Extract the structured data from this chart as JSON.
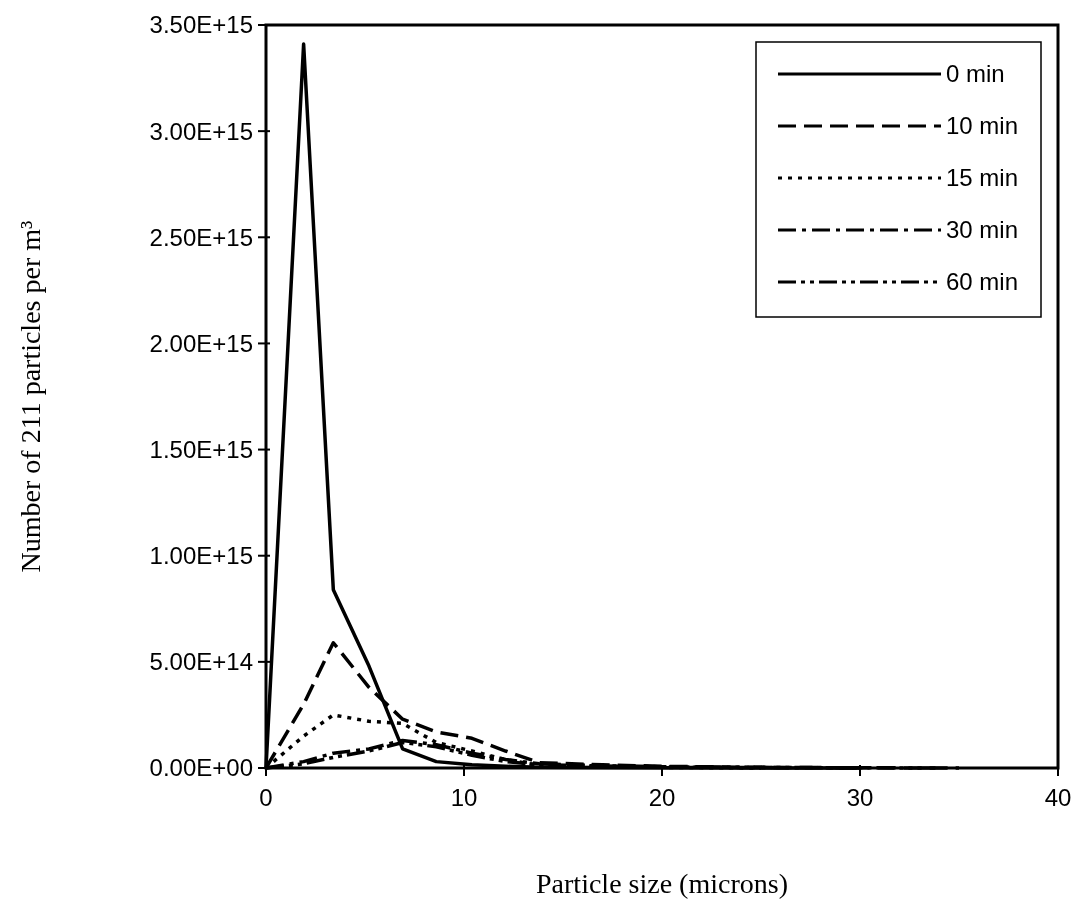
{
  "chart_data": {
    "type": "line",
    "xlabel": "Particle size (microns)",
    "ylabel": "Number of 211 particles per m³",
    "xlim": [
      0,
      40
    ],
    "xticks": [
      0,
      10,
      20,
      30,
      40
    ],
    "ylim": [
      0,
      3500000000000000.0
    ],
    "yticks": [
      {
        "value": 0,
        "label": "0.00E+00"
      },
      {
        "value": 500000000000000.0,
        "label": "5.00E+14"
      },
      {
        "value": 1000000000000000.0,
        "label": "1.00E+15"
      },
      {
        "value": 1500000000000000.0,
        "label": "1.50E+15"
      },
      {
        "value": 2000000000000000.0,
        "label": "2.00E+15"
      },
      {
        "value": 2500000000000000.0,
        "label": "2.50E+15"
      },
      {
        "value": 3000000000000000.0,
        "label": "3.00E+15"
      },
      {
        "value": 3500000000000000.0,
        "label": "3.50E+15"
      }
    ],
    "legend": "top right",
    "grid": false,
    "series": [
      {
        "name": "0 min",
        "color": "#000000",
        "line_style": "solid",
        "x": [
          0,
          1.9,
          3.4,
          5.2,
          6.9,
          8.6,
          10.4,
          12.1,
          13.8,
          17,
          20,
          25,
          30
        ],
        "values": [
          0,
          3410000000000000.0,
          840000000000000.0,
          480000000000000.0,
          90000000000000.0,
          30000000000000.0,
          15000000000000.0,
          8000000000000.0,
          4000000000000.0,
          2000000000000.0,
          1000000000000.0,
          0,
          0
        ]
      },
      {
        "name": "10 min",
        "color": "#000000",
        "line_style": "dashed",
        "x": [
          0,
          1.9,
          3.4,
          5.2,
          6.9,
          8.6,
          10.4,
          12.1,
          13.8,
          17,
          20,
          25,
          30,
          35
        ],
        "values": [
          0,
          300000000000000.0,
          590000000000000.0,
          380000000000000.0,
          230000000000000.0,
          170000000000000.0,
          140000000000000.0,
          80000000000000.0,
          25000000000000.0,
          15000000000000.0,
          8000000000000.0,
          3000000000000.0,
          1000000000000.0,
          0
        ]
      },
      {
        "name": "15 min",
        "color": "#000000",
        "line_style": "dotted",
        "x": [
          0,
          1.9,
          3.4,
          5.2,
          6.9,
          8.6,
          10.4,
          12.1,
          13.8,
          17,
          20,
          25
        ],
        "values": [
          0,
          150000000000000.0,
          250000000000000.0,
          220000000000000.0,
          210000000000000.0,
          120000000000000.0,
          80000000000000.0,
          40000000000000.0,
          12000000000000.0,
          6000000000000.0,
          3000000000000.0,
          0
        ]
      },
      {
        "name": "30 min",
        "color": "#000000",
        "line_style": "dashdot",
        "x": [
          0,
          1.9,
          3.4,
          5.2,
          6.9,
          8.6,
          10.4,
          12.1,
          13.8,
          17,
          20,
          25,
          30
        ],
        "values": [
          0,
          30000000000000.0,
          70000000000000.0,
          90000000000000.0,
          130000000000000.0,
          110000000000000.0,
          70000000000000.0,
          40000000000000.0,
          20000000000000.0,
          10000000000000.0,
          5000000000000.0,
          2000000000000.0,
          0
        ]
      },
      {
        "name": "60 min",
        "color": "#000000",
        "line_style": "dashdotdot",
        "x": [
          0,
          1.9,
          3.4,
          5.2,
          6.9,
          8.6,
          10.4,
          12.1,
          13.8,
          17,
          20,
          25,
          30,
          34
        ],
        "values": [
          0,
          20000000000000.0,
          50000000000000.0,
          80000000000000.0,
          120000000000000.0,
          100000000000000.0,
          60000000000000.0,
          30000000000000.0,
          15000000000000.0,
          10000000000000.0,
          6000000000000.0,
          3000000000000.0,
          1000000000000.0,
          0
        ]
      }
    ]
  }
}
